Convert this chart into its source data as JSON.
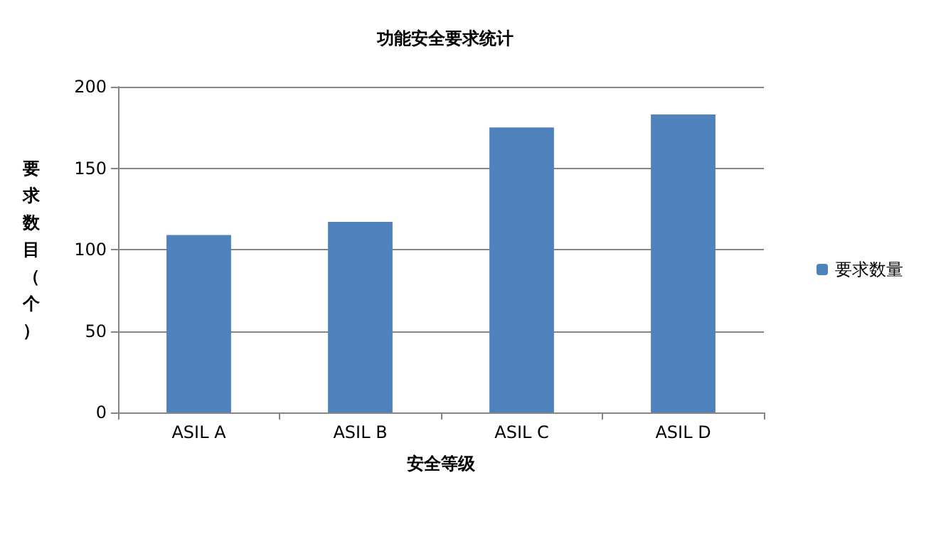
{
  "chart_data": {
    "type": "bar",
    "title": "功能安全要求统计",
    "xlabel": "安全等级",
    "ylabel": "要求数目（个）",
    "categories": [
      "ASIL A",
      "ASIL B",
      "ASIL C",
      "ASIL D"
    ],
    "series": [
      {
        "name": "要求数量",
        "color": "#4f81bd",
        "values": [
          109,
          117,
          175,
          183
        ]
      }
    ],
    "ylim": [
      0,
      200
    ],
    "yticks": [
      0,
      50,
      100,
      150,
      200
    ],
    "grid": "y",
    "legend": "right"
  }
}
